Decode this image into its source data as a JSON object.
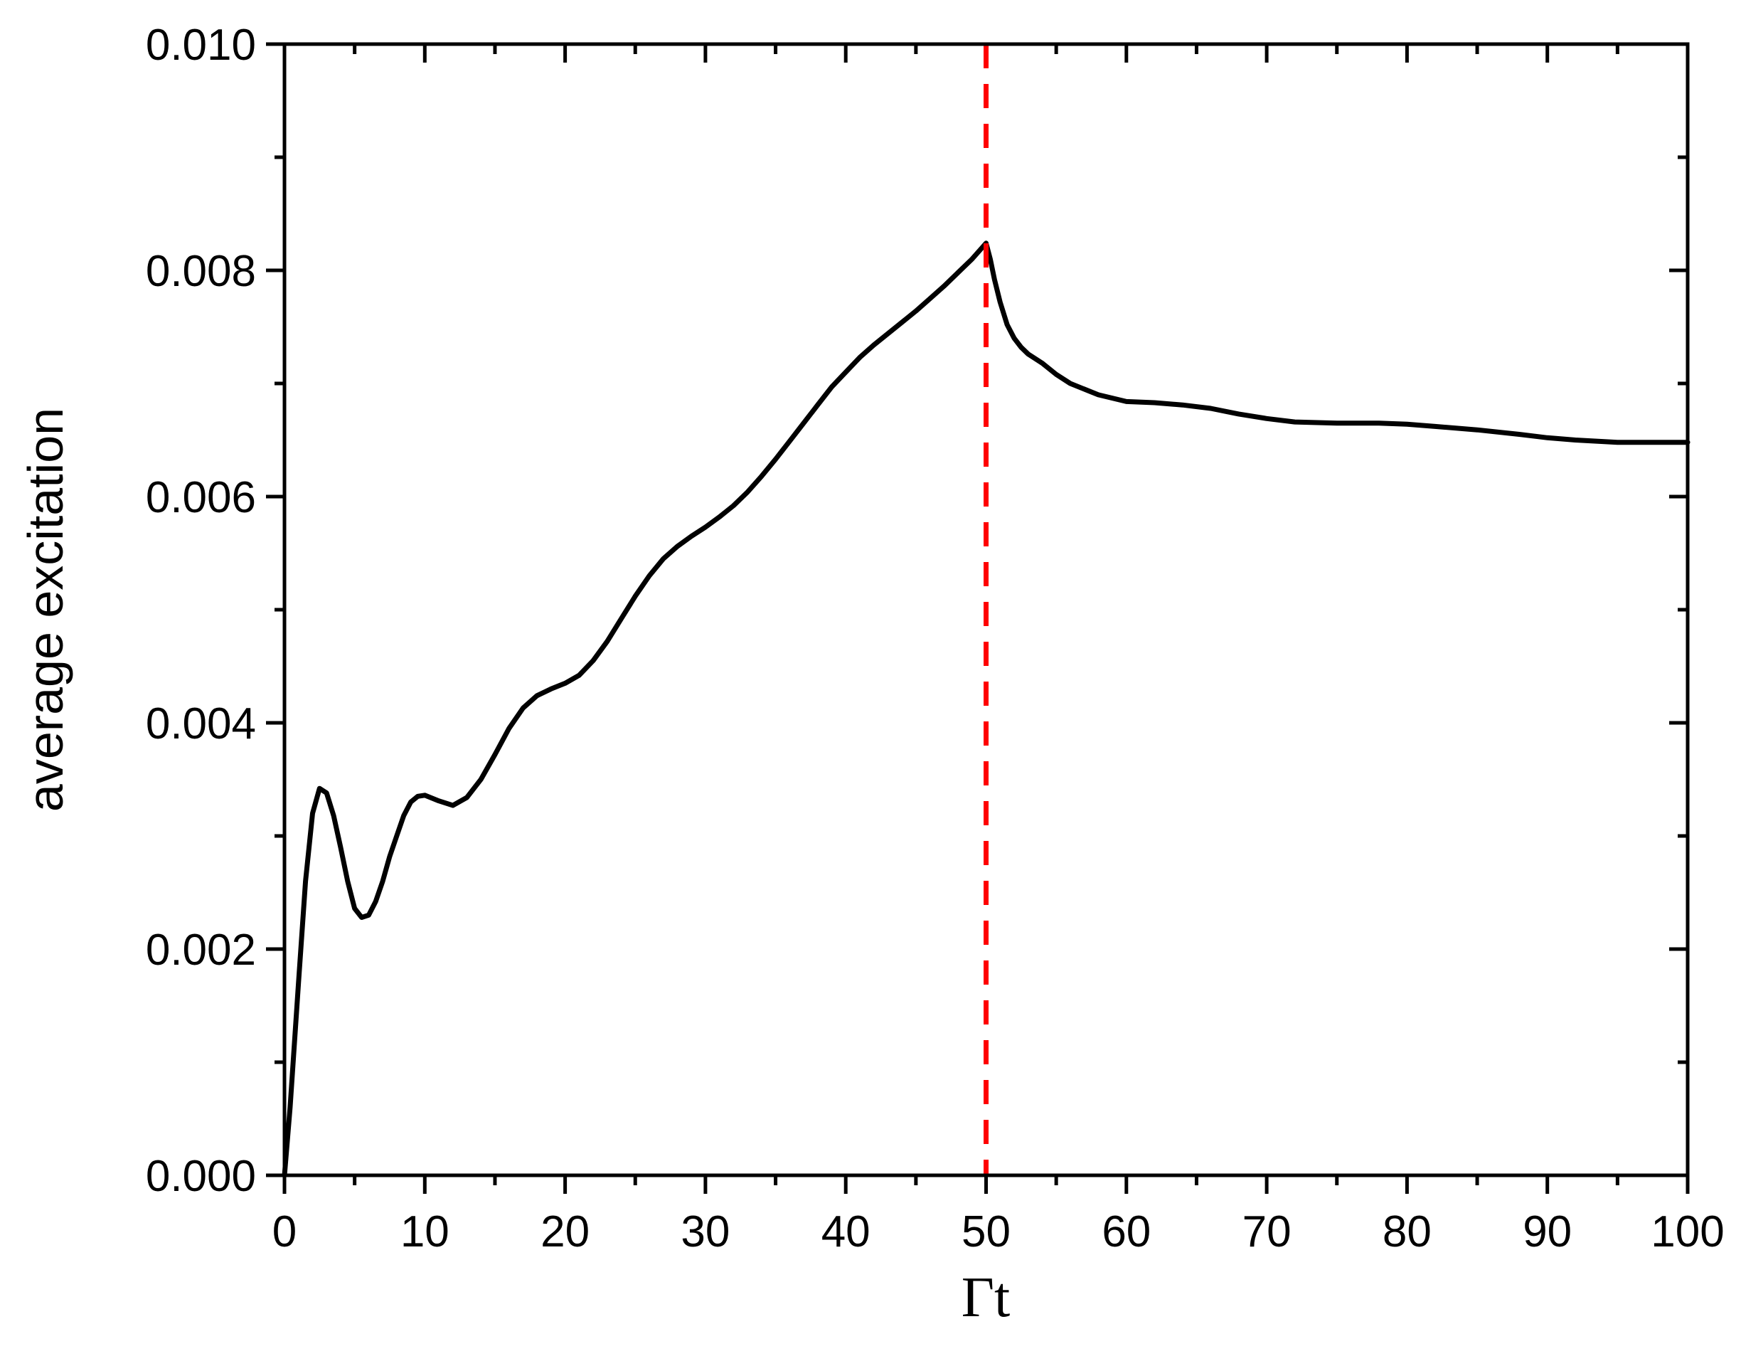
{
  "chart_data": {
    "type": "line",
    "xlabel": "Γt",
    "ylabel": "average excitation",
    "xlim": [
      0,
      100
    ],
    "ylim": [
      0,
      0.01
    ],
    "x_ticks": [
      "0",
      "10",
      "20",
      "30",
      "40",
      "50",
      "60",
      "70",
      "80",
      "90",
      "100"
    ],
    "y_ticks": [
      "0.000",
      "0.002",
      "0.004",
      "0.006",
      "0.008",
      "0.010"
    ],
    "grid": false,
    "series": [
      {
        "color": "#000000",
        "points": [
          [
            0,
            0.0
          ],
          [
            0.4,
            0.0006
          ],
          [
            1,
            0.0017
          ],
          [
            1.5,
            0.0026
          ],
          [
            2,
            0.0032
          ],
          [
            2.5,
            0.00342
          ],
          [
            3,
            0.00338
          ],
          [
            3.5,
            0.00318
          ],
          [
            4,
            0.0029
          ],
          [
            4.5,
            0.0026
          ],
          [
            5,
            0.00236
          ],
          [
            5.5,
            0.00228
          ],
          [
            6,
            0.0023
          ],
          [
            6.5,
            0.00242
          ],
          [
            7,
            0.0026
          ],
          [
            7.5,
            0.00282
          ],
          [
            8,
            0.003
          ],
          [
            8.5,
            0.00318
          ],
          [
            9,
            0.0033
          ],
          [
            9.5,
            0.00335
          ],
          [
            10,
            0.00336
          ],
          [
            11,
            0.00331
          ],
          [
            12,
            0.00327
          ],
          [
            13,
            0.00334
          ],
          [
            14,
            0.0035
          ],
          [
            15,
            0.00372
          ],
          [
            16,
            0.00395
          ],
          [
            17,
            0.00413
          ],
          [
            18,
            0.00424
          ],
          [
            19,
            0.0043
          ],
          [
            20,
            0.00435
          ],
          [
            21,
            0.00442
          ],
          [
            22,
            0.00455
          ],
          [
            23,
            0.00472
          ],
          [
            24,
            0.00492
          ],
          [
            25,
            0.00512
          ],
          [
            26,
            0.0053
          ],
          [
            27,
            0.00545
          ],
          [
            28,
            0.00556
          ],
          [
            29,
            0.00565
          ],
          [
            30,
            0.00573
          ],
          [
            31,
            0.00582
          ],
          [
            32,
            0.00592
          ],
          [
            33,
            0.00604
          ],
          [
            34,
            0.00618
          ],
          [
            35,
            0.00633
          ],
          [
            36,
            0.00649
          ],
          [
            37,
            0.00665
          ],
          [
            38,
            0.00681
          ],
          [
            39,
            0.00697
          ],
          [
            40,
            0.0071
          ],
          [
            41,
            0.00723
          ],
          [
            42,
            0.00734
          ],
          [
            43,
            0.00744
          ],
          [
            44,
            0.00754
          ],
          [
            45,
            0.00764
          ],
          [
            46,
            0.00775
          ],
          [
            47,
            0.00786
          ],
          [
            48,
            0.00798
          ],
          [
            49,
            0.0081
          ],
          [
            50,
            0.00824
          ],
          [
            50.3,
            0.0081
          ],
          [
            50.6,
            0.00792
          ],
          [
            51,
            0.00772
          ],
          [
            51.5,
            0.00752
          ],
          [
            52,
            0.0074
          ],
          [
            52.5,
            0.00732
          ],
          [
            53,
            0.00726
          ],
          [
            54,
            0.00718
          ],
          [
            55,
            0.00708
          ],
          [
            56,
            0.007
          ],
          [
            58,
            0.0069
          ],
          [
            60,
            0.00684
          ],
          [
            62,
            0.00683
          ],
          [
            64,
            0.00681
          ],
          [
            66,
            0.00678
          ],
          [
            68,
            0.00673
          ],
          [
            70,
            0.00669
          ],
          [
            72,
            0.00666
          ],
          [
            75,
            0.00665
          ],
          [
            78,
            0.00665
          ],
          [
            80,
            0.00664
          ],
          [
            82,
            0.00662
          ],
          [
            85,
            0.00659
          ],
          [
            88,
            0.00655
          ],
          [
            90,
            0.00652
          ],
          [
            92,
            0.0065
          ],
          [
            95,
            0.00648
          ],
          [
            100,
            0.00648
          ]
        ]
      }
    ],
    "reference_line": {
      "x": 50,
      "color": "#ff0000",
      "style": "dashed"
    }
  }
}
